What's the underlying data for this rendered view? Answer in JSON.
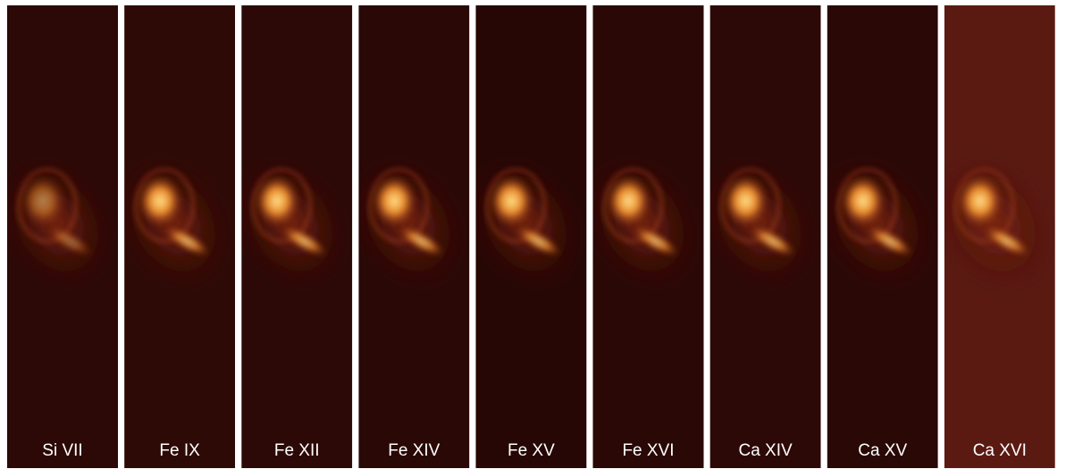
{
  "panels": [
    {
      "label": "Si VII"
    },
    {
      "label": "Fe IX"
    },
    {
      "label": "Fe XII"
    },
    {
      "label": "Fe XIV"
    },
    {
      "label": "Fe XV"
    },
    {
      "label": "Fe XVI"
    },
    {
      "label": "Ca XIV"
    },
    {
      "label": "Ca XV"
    },
    {
      "label": "Ca XVI"
    }
  ]
}
